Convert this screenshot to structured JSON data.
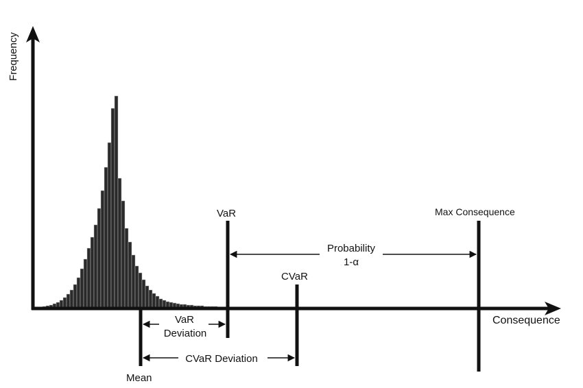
{
  "chart_data": {
    "type": "bar",
    "axes": {
      "x_label": "Consequence",
      "y_label": "Frequency"
    },
    "markers": {
      "mean": "Mean",
      "var": "VaR",
      "cvar": "CVaR",
      "max": "Max Consequence"
    },
    "annotations": {
      "probability_line1": "Probability",
      "probability_line2": "1-α",
      "var_deviation_line1": "VaR",
      "var_deviation_line2": "Deviation",
      "cvar_deviation": "CVaR Deviation"
    },
    "histogram_heights": [
      1,
      2,
      3,
      4,
      5,
      7,
      9,
      12,
      16,
      21,
      27,
      35,
      45,
      58,
      72,
      88,
      104,
      122,
      146,
      172,
      206,
      242,
      292,
      310,
      190,
      157,
      117,
      97,
      78,
      62,
      52,
      42,
      33,
      27,
      22,
      18,
      14,
      12,
      10,
      9,
      8,
      7,
      6,
      6,
      5,
      5,
      4,
      4,
      4,
      3,
      3,
      3,
      3,
      2,
      2,
      2,
      2,
      2,
      2,
      1,
      1,
      1,
      1,
      1,
      1,
      1,
      1,
      1,
      1
    ],
    "bar_color": "#2a2a2a"
  }
}
